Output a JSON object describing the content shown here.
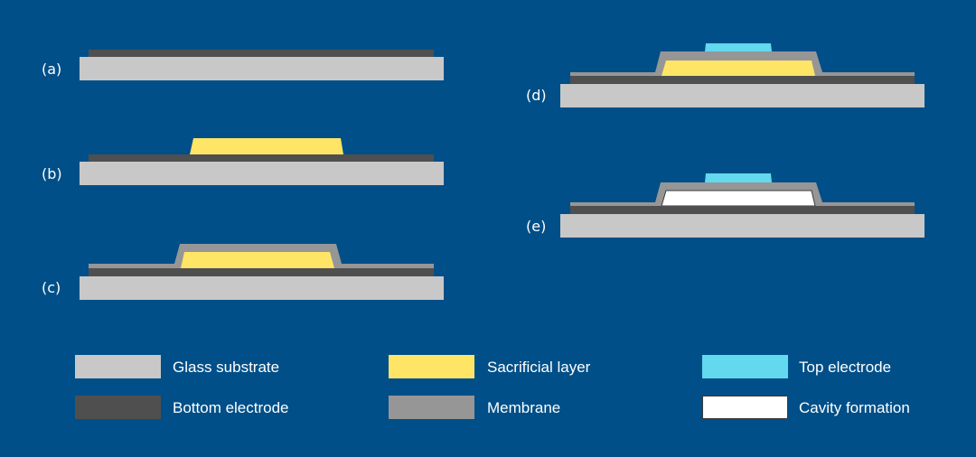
{
  "colors": {
    "background": "#004f88",
    "glass_substrate": "#c8c8c8",
    "bottom_electrode": "#4f4f4f",
    "sacrificial_layer": "#ffe566",
    "membrane": "#969696",
    "top_electrode": "#62d9ee",
    "cavity": "#ffffff"
  },
  "steps": [
    {
      "label": "(a)"
    },
    {
      "label": "(b)"
    },
    {
      "label": "(c)"
    },
    {
      "label": "(d)"
    },
    {
      "label": "(e)"
    }
  ],
  "legend": [
    {
      "label": "Glass substrate",
      "color": "#c8c8c8"
    },
    {
      "label": "Bottom electrode",
      "color": "#4f4f4f"
    },
    {
      "label": "Sacrificial layer",
      "color": "#ffe566"
    },
    {
      "label": "Membrane",
      "color": "#969696"
    },
    {
      "label": "Top electrode",
      "color": "#62d9ee"
    },
    {
      "label": "Cavity formation",
      "color": "#ffffff"
    }
  ]
}
